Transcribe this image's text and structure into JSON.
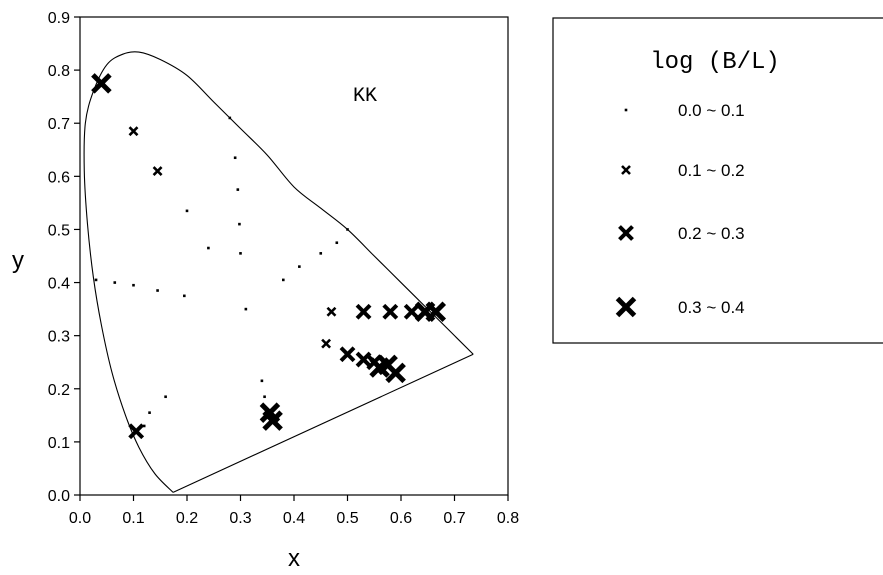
{
  "chart_data": {
    "type": "scatter",
    "title": "",
    "annotation": "KK",
    "xlabel": "x",
    "ylabel": "y",
    "xlim": [
      0.0,
      0.8
    ],
    "ylim": [
      0.0,
      0.9
    ],
    "x_ticks": [
      "0.0",
      "0.1",
      "0.2",
      "0.3",
      "0.4",
      "0.5",
      "0.6",
      "0.7",
      "0.8"
    ],
    "y_ticks": [
      "0.0",
      "0.1",
      "0.2",
      "0.3",
      "0.4",
      "0.5",
      "0.6",
      "0.7",
      "0.8",
      "0.9"
    ],
    "grid": false,
    "legend_position": "right",
    "legend_title": "log (B/L)",
    "boundary": {
      "spectral_locus": [
        [
          0.174,
          0.005
        ],
        [
          0.14,
          0.04
        ],
        [
          0.11,
          0.09
        ],
        [
          0.085,
          0.15
        ],
        [
          0.06,
          0.23
        ],
        [
          0.04,
          0.32
        ],
        [
          0.025,
          0.41
        ],
        [
          0.014,
          0.51
        ],
        [
          0.008,
          0.61
        ],
        [
          0.01,
          0.7
        ],
        [
          0.025,
          0.76
        ],
        [
          0.05,
          0.81
        ],
        [
          0.08,
          0.83
        ],
        [
          0.11,
          0.834
        ],
        [
          0.15,
          0.82
        ],
        [
          0.2,
          0.79
        ],
        [
          0.25,
          0.74
        ],
        [
          0.3,
          0.69
        ],
        [
          0.35,
          0.64
        ],
        [
          0.4,
          0.58
        ],
        [
          0.45,
          0.54
        ],
        [
          0.5,
          0.5
        ],
        [
          0.55,
          0.45
        ],
        [
          0.6,
          0.4
        ],
        [
          0.65,
          0.35
        ],
        [
          0.7,
          0.3
        ],
        [
          0.735,
          0.265
        ]
      ],
      "purple_line": [
        [
          0.735,
          0.265
        ],
        [
          0.174,
          0.005
        ]
      ]
    },
    "series": [
      {
        "name": "0.0 ~ 0.1",
        "marker": "dot",
        "points": [
          [
            0.28,
            0.71
          ],
          [
            0.29,
            0.635
          ],
          [
            0.295,
            0.575
          ],
          [
            0.298,
            0.51
          ],
          [
            0.2,
            0.535
          ],
          [
            0.24,
            0.465
          ],
          [
            0.3,
            0.455
          ],
          [
            0.31,
            0.35
          ],
          [
            0.03,
            0.405
          ],
          [
            0.065,
            0.4
          ],
          [
            0.1,
            0.395
          ],
          [
            0.145,
            0.385
          ],
          [
            0.195,
            0.375
          ],
          [
            0.38,
            0.405
          ],
          [
            0.41,
            0.43
          ],
          [
            0.45,
            0.455
          ],
          [
            0.48,
            0.475
          ],
          [
            0.5,
            0.5
          ],
          [
            0.13,
            0.155
          ],
          [
            0.16,
            0.185
          ],
          [
            0.34,
            0.215
          ],
          [
            0.345,
            0.185
          ],
          [
            0.12,
            0.13
          ]
        ]
      },
      {
        "name": "0.1 ~ 0.2",
        "marker": "small-x",
        "points": [
          [
            0.1,
            0.685
          ],
          [
            0.145,
            0.61
          ],
          [
            0.47,
            0.345
          ],
          [
            0.46,
            0.285
          ]
        ]
      },
      {
        "name": "0.2 ~ 0.3",
        "marker": "medium-x",
        "points": [
          [
            0.105,
            0.12
          ],
          [
            0.5,
            0.265
          ],
          [
            0.53,
            0.345
          ],
          [
            0.58,
            0.345
          ],
          [
            0.62,
            0.345
          ],
          [
            0.53,
            0.255
          ],
          [
            0.55,
            0.25
          ]
        ]
      },
      {
        "name": "0.3 ~ 0.4",
        "marker": "large-x",
        "points": [
          [
            0.04,
            0.775
          ],
          [
            0.355,
            0.155
          ],
          [
            0.36,
            0.14
          ],
          [
            0.56,
            0.24
          ],
          [
            0.575,
            0.245
          ],
          [
            0.59,
            0.23
          ],
          [
            0.645,
            0.345
          ],
          [
            0.665,
            0.345
          ]
        ]
      }
    ]
  }
}
